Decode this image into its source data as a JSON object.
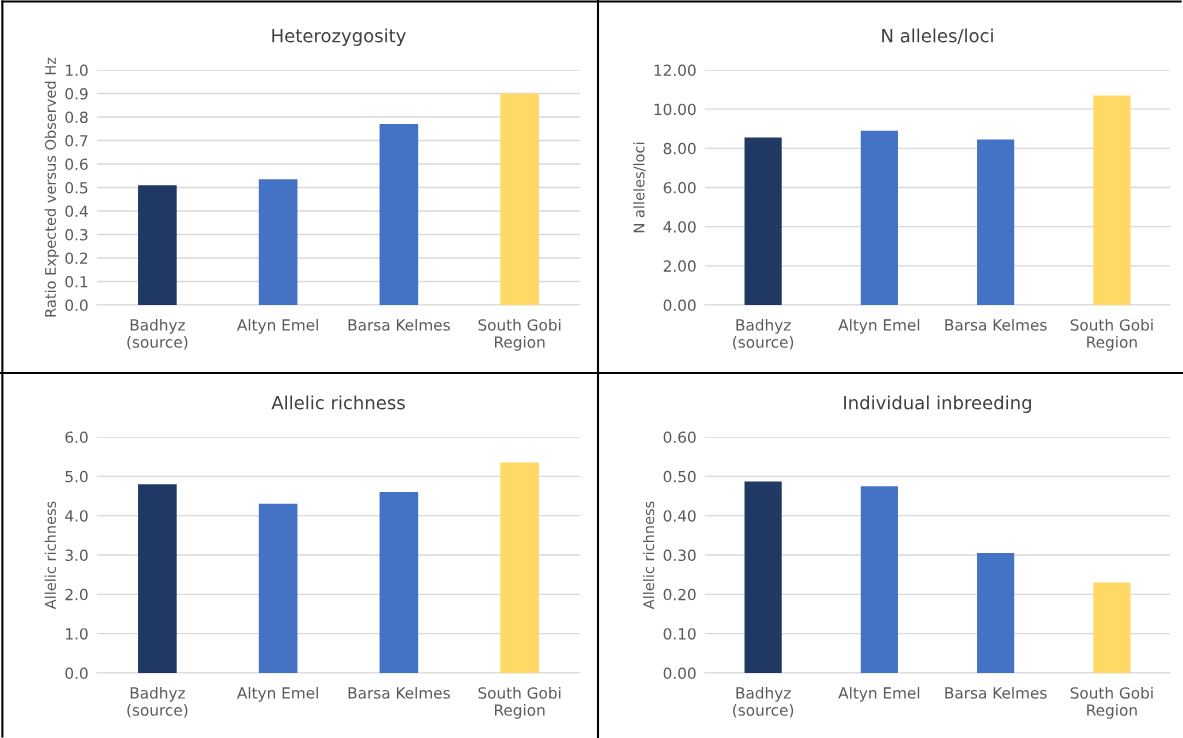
{
  "chart_data": [
    {
      "type": "bar",
      "title": "Heterozygosity",
      "ylabel": "Ratio Expected versus Observed Hz",
      "categories": [
        "Badhyz\n(source)",
        "Altyn Emel",
        "Barsa Kelmes",
        "South Gobi\nRegion"
      ],
      "values": [
        0.51,
        0.535,
        0.77,
        0.9
      ],
      "colors": [
        "#1f3864",
        "#4472c4",
        "#4472c4",
        "#ffd966"
      ],
      "ylim": [
        0,
        1.0
      ],
      "yticks": [
        {
          "value": 0,
          "label": "0.0"
        },
        0.1,
        0.2,
        0.3,
        0.4,
        0.5,
        0.6,
        0.7,
        0.8,
        0.9,
        {
          "value": 1,
          "label": "1.0"
        }
      ],
      "grid": "y"
    },
    {
      "type": "bar",
      "title": "N alleles/loci",
      "ylabel": "N alleles/loci",
      "categories": [
        "Badhyz\n(source)",
        "Altyn Emel",
        "Barsa Kelmes",
        "South Gobi\nRegion"
      ],
      "values": [
        8.55,
        8.9,
        8.45,
        10.7
      ],
      "colors": [
        "#1f3864",
        "#4472c4",
        "#4472c4",
        "#ffd966"
      ],
      "ylim": [
        0,
        12
      ],
      "yticks": [
        {
          "value": 0,
          "label": "0.00"
        },
        {
          "value": 2,
          "label": "2.00"
        },
        {
          "value": 4,
          "label": "4.00"
        },
        {
          "value": 6,
          "label": "6.00"
        },
        {
          "value": 8,
          "label": "8.00"
        },
        {
          "value": 10,
          "label": "10.00"
        },
        {
          "value": 12,
          "label": "12.00"
        }
      ],
      "grid": "y"
    },
    {
      "type": "bar",
      "title": "Allelic richness",
      "ylabel": "Allelic richness",
      "categories": [
        "Badhyz\n(source)",
        "Altyn Emel",
        "Barsa Kelmes",
        "South Gobi\nRegion"
      ],
      "values": [
        4.8,
        4.3,
        4.6,
        5.35
      ],
      "colors": [
        "#1f3864",
        "#4472c4",
        "#4472c4",
        "#ffd966"
      ],
      "ylim": [
        0,
        6
      ],
      "yticks": [
        {
          "value": 0,
          "label": "0.0"
        },
        {
          "value": 1,
          "label": "1.0"
        },
        {
          "value": 2,
          "label": "2.0"
        },
        {
          "value": 3,
          "label": "3.0"
        },
        {
          "value": 4,
          "label": "4.0"
        },
        {
          "value": 5,
          "label": "5.0"
        },
        {
          "value": 6,
          "label": "6.0"
        }
      ],
      "grid": "y"
    },
    {
      "type": "bar",
      "title": "Individual inbreeding",
      "ylabel": "Allelic richness",
      "categories": [
        "Badhyz\n(source)",
        "Altyn Emel",
        "Barsa Kelmes",
        "South Gobi\nRegion"
      ],
      "values": [
        0.487,
        0.475,
        0.305,
        0.23
      ],
      "colors": [
        "#1f3864",
        "#4472c4",
        "#4472c4",
        "#ffd966"
      ],
      "ylim": [
        0,
        0.6
      ],
      "yticks": [
        {
          "value": 0,
          "label": "0.00"
        },
        {
          "value": 0.1,
          "label": "0.10"
        },
        {
          "value": 0.2,
          "label": "0.20"
        },
        {
          "value": 0.3,
          "label": "0.30"
        },
        {
          "value": 0.4,
          "label": "0.40"
        },
        {
          "value": 0.5,
          "label": "0.50"
        },
        {
          "value": 0.6,
          "label": "0.60"
        }
      ],
      "grid": "y"
    }
  ]
}
